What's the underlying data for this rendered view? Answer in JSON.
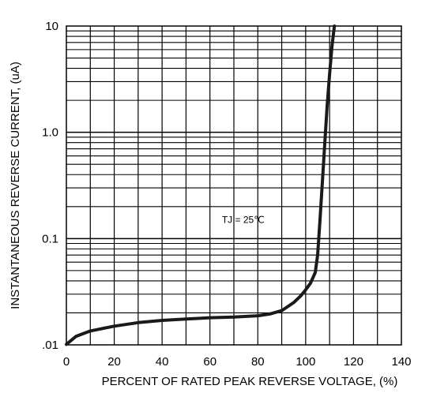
{
  "chart_data": {
    "type": "line",
    "title": "",
    "xlabel": "PERCENT OF RATED PEAK REVERSE VOLTAGE, (%)",
    "ylabel": "INSTANTANEOUS REVERSE CURRENT, (uA)",
    "x_scale": "linear",
    "y_scale": "log",
    "xlim": [
      0,
      140
    ],
    "ylim": [
      0.01,
      10
    ],
    "x_ticks": [
      0,
      20,
      40,
      60,
      80,
      100,
      120,
      140
    ],
    "x_tick_labels": [
      "0",
      "20",
      "40",
      "60",
      "80",
      "100",
      "120",
      "140"
    ],
    "y_ticks": [
      0.01,
      0.1,
      1,
      10
    ],
    "y_tick_labels": [
      ".01",
      "0.1",
      "1.0",
      "10"
    ],
    "grid": true,
    "annotation": {
      "text": "TJ = 25℃",
      "x": 65,
      "y": 0.15
    },
    "series": [
      {
        "color": "#1a1a1a",
        "x": [
          0,
          4,
          10,
          20,
          30,
          40,
          50,
          60,
          70,
          80,
          85,
          90,
          95,
          98,
          100,
          102,
          104,
          105,
          106,
          107,
          108,
          109,
          110,
          111,
          112
        ],
        "y": [
          0.0101,
          0.012,
          0.0135,
          0.015,
          0.0162,
          0.017,
          0.0175,
          0.018,
          0.0183,
          0.0188,
          0.0195,
          0.021,
          0.025,
          0.029,
          0.033,
          0.038,
          0.048,
          0.07,
          0.15,
          0.35,
          0.8,
          1.8,
          3.5,
          6.5,
          10
        ]
      }
    ]
  }
}
